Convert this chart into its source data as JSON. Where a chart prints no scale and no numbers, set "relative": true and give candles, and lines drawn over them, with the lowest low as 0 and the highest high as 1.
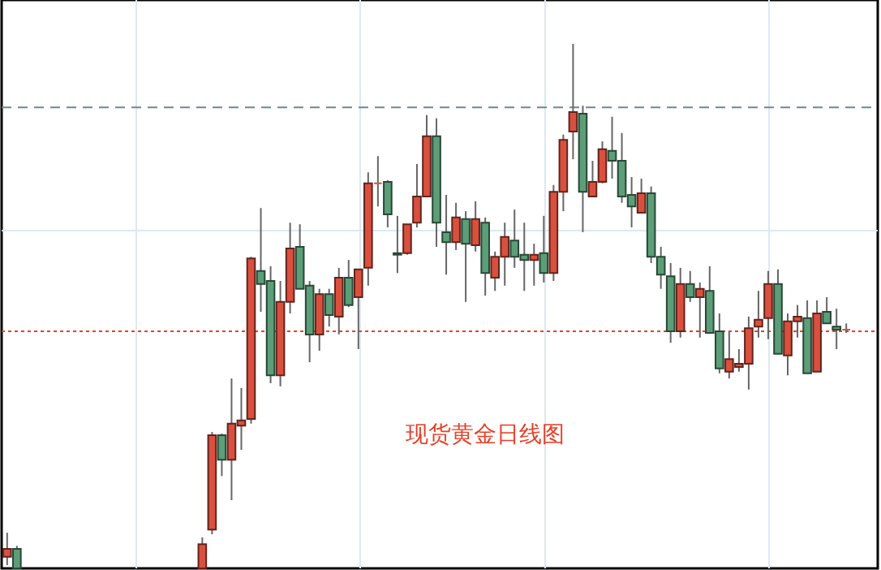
{
  "chart_data": {
    "type": "candlestick",
    "title": "现货黄金日线图",
    "relative": true,
    "grid": true,
    "categories": [
      null,
      null,
      null,
      null,
      null,
      null,
      null,
      null,
      null,
      null,
      null,
      null,
      null,
      null,
      null,
      null,
      null,
      null,
      null,
      null,
      null,
      null,
      null,
      null,
      null,
      null,
      null,
      null,
      null,
      null,
      null,
      null,
      null,
      null,
      null,
      null,
      null,
      null,
      null,
      null,
      null,
      null,
      null,
      null,
      null,
      null,
      null,
      null,
      null,
      null,
      null,
      null,
      null,
      null,
      null,
      null,
      null,
      null,
      null,
      null,
      null,
      null,
      null,
      null,
      null,
      null,
      null,
      null,
      null,
      null,
      null,
      null,
      null,
      null,
      null,
      null,
      null,
      null,
      null,
      null,
      null,
      null,
      null,
      null,
      null,
      null,
      null
    ],
    "ohlc": [
      [
        0.022,
        0.068,
        0.006,
        0.037
      ],
      [
        0.037,
        0.043,
        0,
        0
      ],
      null,
      null,
      null,
      null,
      null,
      null,
      null,
      null,
      null,
      null,
      null,
      null,
      null,
      null,
      null,
      null,
      null,
      null,
      [
        0,
        0.059,
        0,
        0.046
      ],
      [
        0.074,
        0.26,
        0.065,
        0.254
      ],
      [
        0.254,
        0.257,
        0.176,
        0.207
      ],
      [
        0.207,
        0.362,
        0.13,
        0.276
      ],
      [
        0.272,
        0.344,
        0.226,
        0.282
      ],
      [
        0.285,
        0.594,
        0.276,
        0.591
      ],
      [
        0.567,
        0.687,
        0.489,
        0.542
      ],
      [
        0.548,
        0.576,
        0.353,
        0.368
      ],
      [
        0.368,
        0.548,
        0.347,
        0.508
      ],
      [
        0.508,
        0.659,
        0.486,
        0.61
      ],
      [
        0.613,
        0.656,
        0.533,
        0.533
      ],
      [
        0.539,
        0.548,
        0.393,
        0.446
      ],
      [
        0.446,
        0.533,
        0.415,
        0.523
      ],
      [
        0.523,
        0.533,
        0.461,
        0.483
      ],
      [
        0.48,
        0.573,
        0.446,
        0.554
      ],
      [
        0.554,
        0.588,
        0.498,
        0.502
      ],
      [
        0.517,
        0.57,
        0.418,
        0.57
      ],
      [
        0.573,
        0.755,
        0.539,
        0.734
      ],
      [
        0.734,
        0.786,
        0.69,
        0.734
      ],
      [
        0.737,
        0.74,
        0.65,
        0.675
      ],
      [
        0.601,
        0.672,
        0.563,
        0.598
      ],
      [
        0.601,
        0.656,
        0.598,
        0.656
      ],
      [
        0.659,
        0.771,
        0.65,
        0.709
      ],
      [
        0.709,
        0.864,
        0.709,
        0.824
      ],
      [
        0.824,
        0.858,
        0.613,
        0.659
      ],
      [
        0.641,
        0.712,
        0.56,
        0.622
      ],
      [
        0.622,
        0.697,
        0.607,
        0.669
      ],
      [
        0.666,
        0.681,
        0.508,
        0.619
      ],
      [
        0.616,
        0.7,
        0.604,
        0.666
      ],
      [
        0.659,
        0.669,
        0.52,
        0.563
      ],
      [
        0.554,
        0.604,
        0.529,
        0.594
      ],
      [
        0.594,
        0.659,
        0.539,
        0.632
      ],
      [
        0.625,
        0.684,
        0.573,
        0.594
      ],
      [
        0.598,
        0.659,
        0.529,
        0.588
      ],
      [
        0.588,
        0.619,
        0.539,
        0.598
      ],
      [
        0.601,
        0.672,
        0.545,
        0.563
      ],
      [
        0.563,
        0.731,
        0.548,
        0.718
      ],
      [
        0.718,
        0.827,
        0.681,
        0.817
      ],
      [
        0.833,
        1,
        0.78,
        0.87
      ],
      [
        0.867,
        0.882,
        0.641,
        0.718
      ],
      [
        0.709,
        0.777,
        0.709,
        0.737
      ],
      [
        0.737,
        0.814,
        0.734,
        0.799
      ],
      [
        0.796,
        0.861,
        0.743,
        0.777
      ],
      [
        0.777,
        0.83,
        0.697,
        0.709
      ],
      [
        0.712,
        0.746,
        0.65,
        0.69
      ],
      [
        0.678,
        0.743,
        0.678,
        0.715
      ],
      [
        0.715,
        0.728,
        0.582,
        0.594
      ],
      [
        0.594,
        0.613,
        0.533,
        0.56
      ],
      [
        0.557,
        0.582,
        0.43,
        0.452
      ],
      [
        0.452,
        0.573,
        0.44,
        0.542
      ],
      [
        0.542,
        0.567,
        0.508,
        0.517
      ],
      [
        0.517,
        0.545,
        0.44,
        0.533
      ],
      [
        0.529,
        0.576,
        0.449,
        0.449
      ],
      [
        0.452,
        0.486,
        0.372,
        0.381
      ],
      [
        0.375,
        0.452,
        0.362,
        0.399
      ],
      [
        0.384,
        0.418,
        0.375,
        0.39
      ],
      [
        0.39,
        0.48,
        0.341,
        0.458
      ],
      [
        0.461,
        0.529,
        0.44,
        0.474
      ],
      [
        0.477,
        0.567,
        0.437,
        0.542
      ],
      [
        0.542,
        0.57,
        0.409,
        0.409
      ],
      [
        0.406,
        0.486,
        0.368,
        0.471
      ],
      [
        0.471,
        0.502,
        0.44,
        0.48
      ],
      [
        0.477,
        0.511,
        0.372,
        0.372
      ],
      [
        0.375,
        0.511,
        0.375,
        0.486
      ],
      [
        0.489,
        0.517,
        0.467,
        0.467
      ],
      [
        0.461,
        0.495,
        0.418,
        0.455
      ],
      [
        0.455,
        0.467,
        0.449,
        0.455
      ]
    ],
    "colors": [
      "#d9503f",
      "#5c9e78",
      null,
      null,
      null,
      null,
      null,
      null,
      null,
      null,
      null,
      null,
      null,
      null,
      null,
      null,
      null,
      null,
      null,
      null,
      "#d9503f",
      "#d9503f",
      "#5c9e78",
      "#d9503f",
      "#d9503f",
      "#d9503f",
      "#5c9e78",
      "#5c9e78",
      "#d9503f",
      "#d9503f",
      "#5c9e78",
      "#5c9e78",
      "#d9503f",
      "#5c9e78",
      "#d9503f",
      "#5c9e78",
      "#d9503f",
      "#d9503f",
      "#d9503f",
      "#5c9e78",
      "#5c9e78",
      "#d9503f",
      "#d9503f",
      "#d9503f",
      "#5c9e78",
      "#5c9e78",
      "#d9503f",
      "#5c9e78",
      "#d9503f",
      "#5c9e78",
      "#d9503f",
      "#d9503f",
      "#5c9e78",
      "#5c9e78",
      "#d9503f",
      "#5c9e78",
      "#d9503f",
      "#d9503f",
      "#d9503f",
      "#5c9e78",
      "#d9503f",
      "#d9503f",
      "#5c9e78",
      "#5c9e78",
      "#5c9e78",
      "#d9503f",
      "#5c9e78",
      "#5c9e78",
      "#5c9e78",
      "#d9503f",
      "#5c9e78",
      "#d9503f",
      "#5c9e78",
      "#5c9e78",
      "#d9503f",
      "#d9503f",
      "#d9503f",
      "#d9503f",
      "#d9503f",
      "#5c9e78",
      "#d9503f",
      "#d9503f",
      "#5c9e78",
      "#d9503f",
      "#5c9e78",
      "#5c9e78",
      "#d9503f"
    ],
    "ref_lines": [
      {
        "axis": "y",
        "value": 0.879,
        "color": "#6e8796",
        "line_style": "dashed"
      },
      {
        "axis": "y",
        "value": 0.452,
        "color": "#e8402a",
        "line_style": "dotted"
      }
    ]
  }
}
